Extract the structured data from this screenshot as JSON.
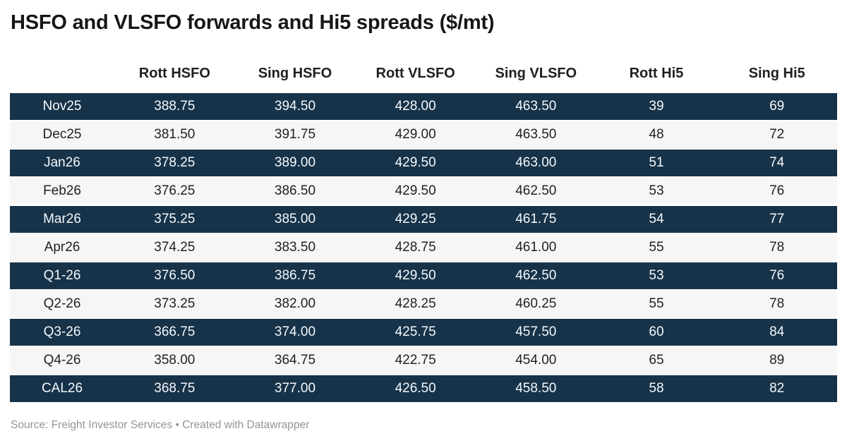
{
  "title": "HSFO and VLSFO forwards and Hi5 spreads ($/mt)",
  "footer": {
    "text": "Source: Freight Investor Services • Created with Datawrapper"
  },
  "colors": {
    "row_dark_background": "#17334a",
    "row_light_background": "#f7f6f7",
    "text_on_dark": "#f4f8fb",
    "text_on_light": "#222222",
    "title_text": "#161616",
    "footer_text": "#949494"
  },
  "chart_data": {
    "type": "table",
    "title": "HSFO and VLSFO forwards and Hi5 spreads ($/mt)",
    "columns": [
      "",
      "Rott HSFO",
      "Sing HSFO",
      "Rott VLSFO",
      "Sing VLSFO",
      "Rott Hi5",
      "Sing Hi5"
    ],
    "rows": [
      [
        "Nov25",
        "388.75",
        "394.50",
        "428.00",
        "463.50",
        "39",
        "69"
      ],
      [
        "Dec25",
        "381.50",
        "391.75",
        "429.00",
        "463.50",
        "48",
        "72"
      ],
      [
        "Jan26",
        "378.25",
        "389.00",
        "429.50",
        "463.00",
        "51",
        "74"
      ],
      [
        "Feb26",
        "376.25",
        "386.50",
        "429.50",
        "462.50",
        "53",
        "76"
      ],
      [
        "Mar26",
        "375.25",
        "385.00",
        "429.25",
        "461.75",
        "54",
        "77"
      ],
      [
        "Apr26",
        "374.25",
        "383.50",
        "428.75",
        "461.00",
        "55",
        "78"
      ],
      [
        "Q1-26",
        "376.50",
        "386.75",
        "429.50",
        "462.50",
        "53",
        "76"
      ],
      [
        "Q2-26",
        "373.25",
        "382.00",
        "428.25",
        "460.25",
        "55",
        "78"
      ],
      [
        "Q3-26",
        "366.75",
        "374.00",
        "425.75",
        "457.50",
        "60",
        "84"
      ],
      [
        "Q4-26",
        "358.00",
        "364.75",
        "422.75",
        "454.00",
        "65",
        "89"
      ],
      [
        "CAL26",
        "368.75",
        "377.00",
        "426.50",
        "458.50",
        "58",
        "82"
      ]
    ],
    "row_striping": "odd rows dark navy, even rows light gray",
    "source_note": "Source: Freight Investor Services • Created with Datawrapper",
    "layout": {
      "grid": false,
      "legend": "none",
      "alignment": "center"
    }
  }
}
